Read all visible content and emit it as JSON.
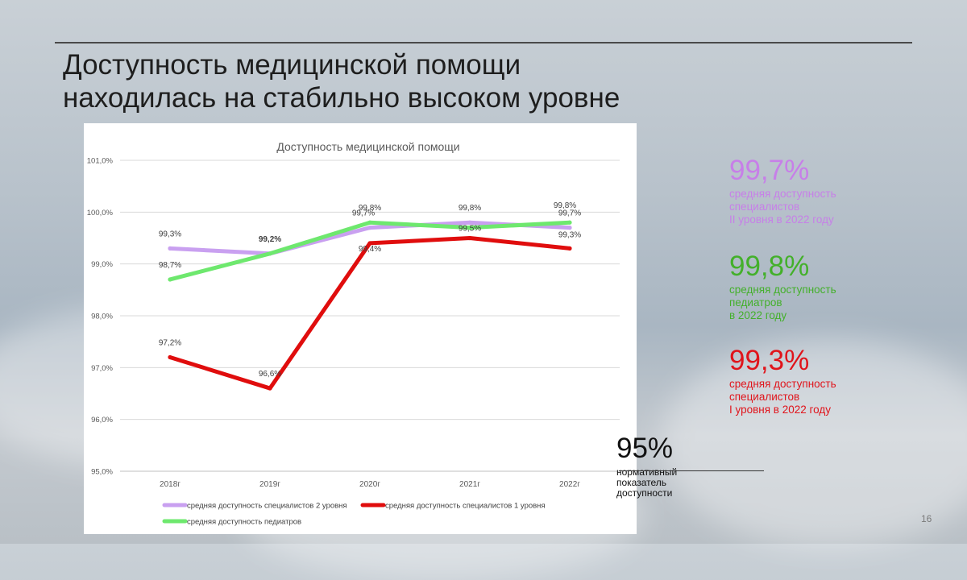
{
  "slide": {
    "title_line1": "Доступность медицинской помощи",
    "title_line2": "находилась на стабильно высоком уровне",
    "page_number": "16"
  },
  "stats": [
    {
      "value": "99,7%",
      "desc": [
        "средняя доступность",
        "специалистов",
        "II уровня в 2022 году"
      ],
      "color": "#c77fe8"
    },
    {
      "value": "99,8%",
      "desc": [
        "средняя доступность",
        "педиатров",
        "в 2022 году"
      ],
      "color": "#43b02a"
    },
    {
      "value": "99,3%",
      "desc": [
        "средняя доступность",
        "специалистов",
        "I уровня в 2022 году"
      ],
      "color": "#e0141b"
    }
  ],
  "norm": {
    "value": "95%",
    "desc": [
      "нормативный",
      "показатель",
      "доступности"
    ]
  },
  "chart_data": {
    "type": "line",
    "title": "Доступность медицинской помощи",
    "categories": [
      "2018г",
      "2019г",
      "2020г",
      "2021г",
      "2022г"
    ],
    "ylim": [
      95.0,
      101.0
    ],
    "yticks": [
      "95,0%",
      "96,0%",
      "97,0%",
      "98,0%",
      "99,0%",
      "100,0%",
      "101,0%"
    ],
    "grid": true,
    "legend_position": "bottom",
    "series": [
      {
        "name": "средняя доступность  специалистов 2 уровня",
        "values": [
          99.3,
          99.2,
          99.7,
          99.8,
          99.7
        ],
        "labels": [
          "99,3%",
          "99,2%",
          "99,7%",
          "99,8%",
          "99,7%"
        ],
        "color": "#c9a0f0"
      },
      {
        "name": "средняя доступность  специалистов 1 уровня",
        "values": [
          97.2,
          96.6,
          99.4,
          99.5,
          99.3
        ],
        "labels": [
          "97,2%",
          "96,6%",
          "99,4%",
          "99,5%",
          "99,3%"
        ],
        "color": "#e00d0d"
      },
      {
        "name": "средняя доступность педиатров",
        "values": [
          98.7,
          99.2,
          99.8,
          99.7,
          99.8
        ],
        "labels": [
          "98,7%",
          "",
          "99,8%",
          "",
          "99,8%"
        ],
        "color": "#6ee86e"
      }
    ]
  }
}
